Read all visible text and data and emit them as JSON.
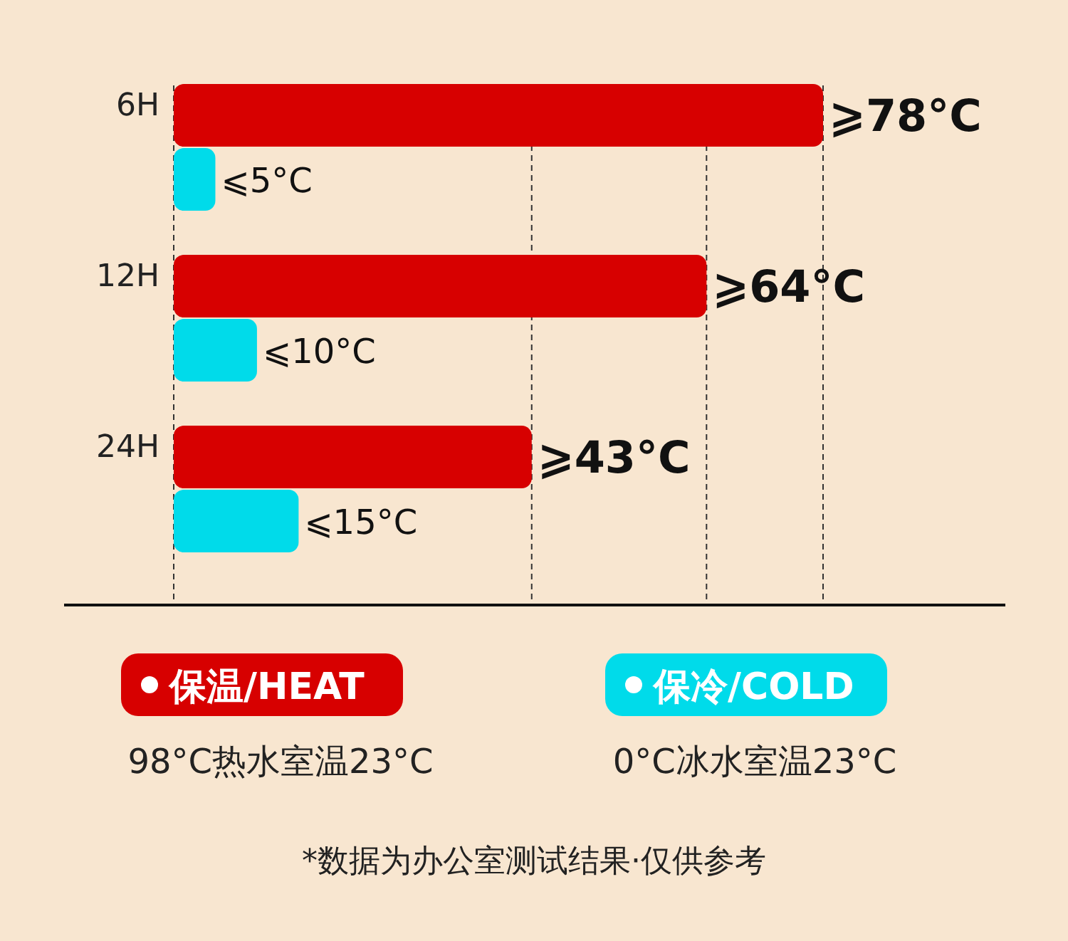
{
  "chart_data": {
    "type": "bar",
    "orientation": "horizontal",
    "categories": [
      "6H",
      "12H",
      "24H"
    ],
    "xlim": [
      0,
      78
    ],
    "series": [
      {
        "name": "保温/HEAT",
        "color": "#d70000",
        "values": [
          78,
          64,
          43
        ],
        "value_labels": [
          "⩾78°C",
          "⩾64°C",
          "⩾43°C"
        ]
      },
      {
        "name": "保冷/COLD",
        "color": "#00dbea",
        "values": [
          5,
          10,
          15
        ],
        "value_labels": [
          "⩽5°C",
          "⩽10°C",
          "⩽15°C"
        ]
      }
    ],
    "ref_lines": [
      {
        "axis": "x",
        "value": 43,
        "line_style": "dashed",
        "color": "#333333"
      },
      {
        "axis": "x",
        "value": 64,
        "line_style": "dashed",
        "color": "#333333"
      },
      {
        "axis": "x",
        "value": 78,
        "line_style": "dashed",
        "color": "#333333"
      }
    ],
    "legend": "bottom",
    "annotations": [
      "98°C热水室温23°C",
      "0°C冰水室温23°C",
      "*数据为办公室测试结果·仅供参考"
    ]
  }
}
